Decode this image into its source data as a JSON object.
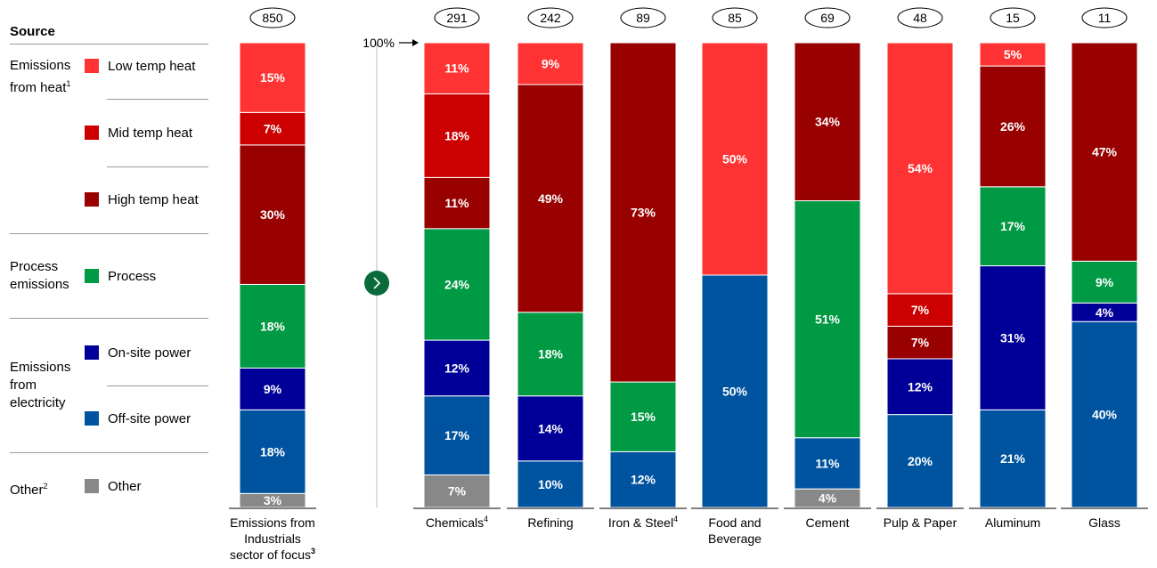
{
  "colors": {
    "low_temp_heat": "#ff3333",
    "mid_temp_heat": "#cc0000",
    "high_temp_heat": "#990000",
    "process": "#009944",
    "on_site_power": "#000099",
    "off_site_power": "#00549f",
    "other": "#888888"
  },
  "legend": {
    "title": "Source",
    "groups": [
      {
        "label": "Emissions from heat",
        "note": "1"
      },
      {
        "label": "Process emissions",
        "note": ""
      },
      {
        "label": "Emissions from electricity",
        "note": ""
      },
      {
        "label": "Other",
        "note": "2"
      }
    ],
    "items": [
      {
        "key": "low_temp_heat",
        "label": "Low temp heat"
      },
      {
        "key": "mid_temp_heat",
        "label": "Mid temp heat"
      },
      {
        "key": "high_temp_heat",
        "label": "High temp heat"
      },
      {
        "key": "process",
        "label": "Process"
      },
      {
        "key": "on_site_power",
        "label": "On-site power"
      },
      {
        "key": "off_site_power",
        "label": "Off-site power"
      },
      {
        "key": "other",
        "label": "Other"
      }
    ]
  },
  "arrow_label": "100%",
  "chart_data": {
    "type": "bar",
    "stacked": true,
    "normalized": true,
    "ylim": [
      0,
      100
    ],
    "grid": false,
    "legend_position": "left",
    "stack_order_bottom_to_top": [
      "other",
      "off_site_power",
      "on_site_power",
      "process",
      "high_temp_heat",
      "mid_temp_heat",
      "low_temp_heat"
    ],
    "bars": [
      {
        "label": "Emissions from Industrials sector of focus",
        "note": "3",
        "total": "850",
        "values": {
          "low_temp_heat": 15,
          "mid_temp_heat": 7,
          "high_temp_heat": 30,
          "process": 18,
          "on_site_power": 9,
          "off_site_power": 18,
          "other": 3
        }
      },
      {
        "label": "Chemicals",
        "note": "4",
        "total": "291",
        "values": {
          "low_temp_heat": 11,
          "mid_temp_heat": 18,
          "high_temp_heat": 11,
          "process": 24,
          "on_site_power": 12,
          "off_site_power": 17,
          "other": 7
        }
      },
      {
        "label": "Refining",
        "note": "",
        "total": "242",
        "values": {
          "low_temp_heat": 9,
          "mid_temp_heat": 0,
          "high_temp_heat": 49,
          "process": 18,
          "on_site_power": 14,
          "off_site_power": 10,
          "other": 0
        }
      },
      {
        "label": "Iron & Steel",
        "note": "4",
        "total": "89",
        "values": {
          "low_temp_heat": 0,
          "mid_temp_heat": 0,
          "high_temp_heat": 73,
          "process": 15,
          "on_site_power": 0,
          "off_site_power": 12,
          "other": 0
        }
      },
      {
        "label": "Food and Beverage",
        "note": "",
        "total": "85",
        "values": {
          "low_temp_heat": 50,
          "mid_temp_heat": 0,
          "high_temp_heat": 0,
          "process": 0,
          "on_site_power": 0,
          "off_site_power": 50,
          "other": 0
        }
      },
      {
        "label": "Cement",
        "note": "",
        "total": "69",
        "values": {
          "low_temp_heat": 0,
          "mid_temp_heat": 0,
          "high_temp_heat": 34,
          "process": 51,
          "on_site_power": 0,
          "off_site_power": 11,
          "other": 4
        }
      },
      {
        "label": "Pulp & Paper",
        "note": "",
        "total": "48",
        "values": {
          "low_temp_heat": 54,
          "mid_temp_heat": 7,
          "high_temp_heat": 7,
          "process": 0,
          "on_site_power": 12,
          "off_site_power": 20,
          "other": 0
        }
      },
      {
        "label": "Aluminum",
        "note": "",
        "total": "15",
        "values": {
          "low_temp_heat": 5,
          "mid_temp_heat": 0,
          "high_temp_heat": 26,
          "process": 17,
          "on_site_power": 31,
          "off_site_power": 21,
          "other": 0
        }
      },
      {
        "label": "Glass",
        "note": "",
        "total": "11",
        "values": {
          "low_temp_heat": 0,
          "mid_temp_heat": 0,
          "high_temp_heat": 47,
          "process": 9,
          "on_site_power": 4,
          "off_site_power": 40,
          "other": 0
        }
      }
    ]
  }
}
